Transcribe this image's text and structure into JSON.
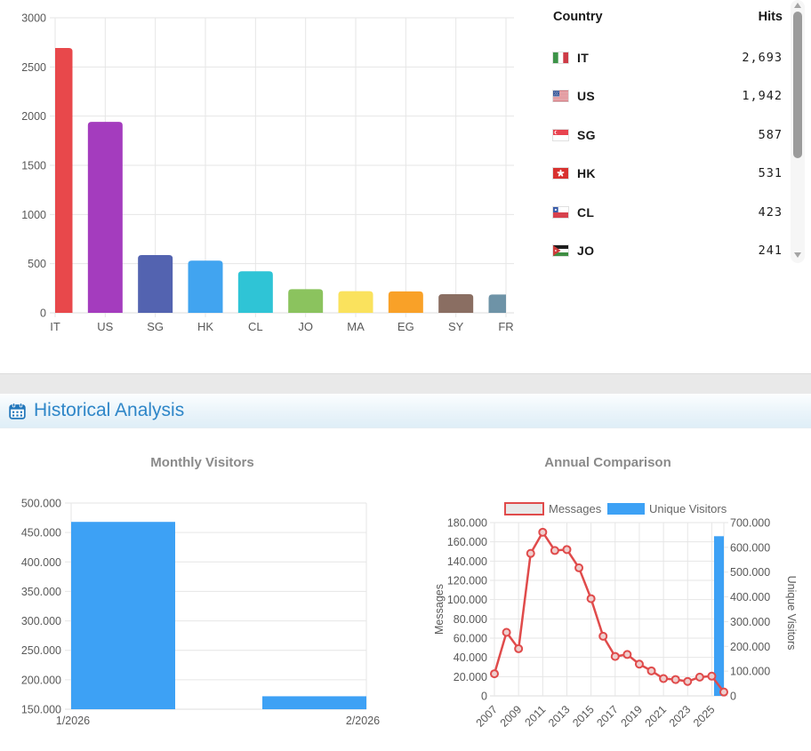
{
  "sections": {
    "historical_title": "Historical Analysis"
  },
  "table": {
    "headers": [
      "Country",
      "Hits"
    ],
    "rows": [
      {
        "code": "IT",
        "flag": "flag-it",
        "hits": "2,693"
      },
      {
        "code": "US",
        "flag": "flag-us",
        "hits": "1,942"
      },
      {
        "code": "SG",
        "flag": "flag-sg",
        "hits": "587"
      },
      {
        "code": "HK",
        "flag": "flag-hk",
        "hits": "531"
      },
      {
        "code": "CL",
        "flag": "flag-cl",
        "hits": "423"
      },
      {
        "code": "JO",
        "flag": "flag-jo",
        "hits": "241"
      }
    ]
  },
  "chart_data": [
    {
      "name": "country_hits",
      "type": "bar",
      "categories": [
        "IT",
        "US",
        "SG",
        "HK",
        "CL",
        "JO",
        "MA",
        "EG",
        "SY",
        "FR"
      ],
      "values": [
        2693,
        1942,
        587,
        531,
        423,
        241,
        220,
        218,
        190,
        186
      ],
      "bar_colors": [
        "#e8484b",
        "#a43cbe",
        "#5363b0",
        "#41a4f0",
        "#2fc4d6",
        "#8bc35e",
        "#fae25d",
        "#f9a128",
        "#8a6e62",
        "#6e93a7"
      ],
      "title": "",
      "xlabel": "",
      "ylabel": "",
      "ylim": [
        0,
        3000
      ],
      "ytick_step": 500,
      "grid": true
    },
    {
      "name": "monthly_visitors",
      "type": "bar",
      "title": "Monthly Visitors",
      "categories": [
        "1/2026",
        "2/2026"
      ],
      "values": [
        468000,
        172000
      ],
      "bar_color": "#3da1f5",
      "ylim": [
        150000,
        500000
      ],
      "ytick_step": 50000,
      "tick_format": "dot-thousands",
      "grid": true
    },
    {
      "name": "annual_comparison",
      "type": "combo",
      "title": "Annual Comparison",
      "x": [
        2007,
        2008,
        2009,
        2010,
        2011,
        2012,
        2013,
        2014,
        2015,
        2016,
        2017,
        2018,
        2019,
        2020,
        2021,
        2022,
        2023,
        2024,
        2025,
        2026
      ],
      "xtick_labels": [
        "2007",
        "2009",
        "2011",
        "2013",
        "2015",
        "2017",
        "2019",
        "2021",
        "2023",
        "2025"
      ],
      "legend": [
        "Messages",
        "Unique Visitors"
      ],
      "series": [
        {
          "name": "Messages",
          "type": "line",
          "axis": "left",
          "line_color": "#e04b4b",
          "marker_fill": "#eecfce",
          "values": [
            23000,
            66000,
            49000,
            148000,
            170000,
            151000,
            152000,
            133000,
            101000,
            62000,
            41000,
            43000,
            33000,
            26000,
            18000,
            17000,
            15000,
            19500,
            20500,
            4000
          ]
        },
        {
          "name": "Unique Visitors",
          "type": "bar",
          "axis": "right",
          "bar_color": "#3da1f5",
          "values": [
            null,
            null,
            null,
            null,
            null,
            null,
            null,
            null,
            null,
            null,
            null,
            null,
            null,
            null,
            null,
            null,
            null,
            null,
            null,
            645000
          ]
        }
      ],
      "left_axis": {
        "label": "Messages",
        "ylim": [
          0,
          180000
        ],
        "tick_step": 20000
      },
      "right_axis": {
        "label": "Unique Visitors",
        "ylim": [
          0,
          700000
        ],
        "tick_step": 100000
      },
      "tick_format": "dot-thousands",
      "grid": true
    }
  ]
}
